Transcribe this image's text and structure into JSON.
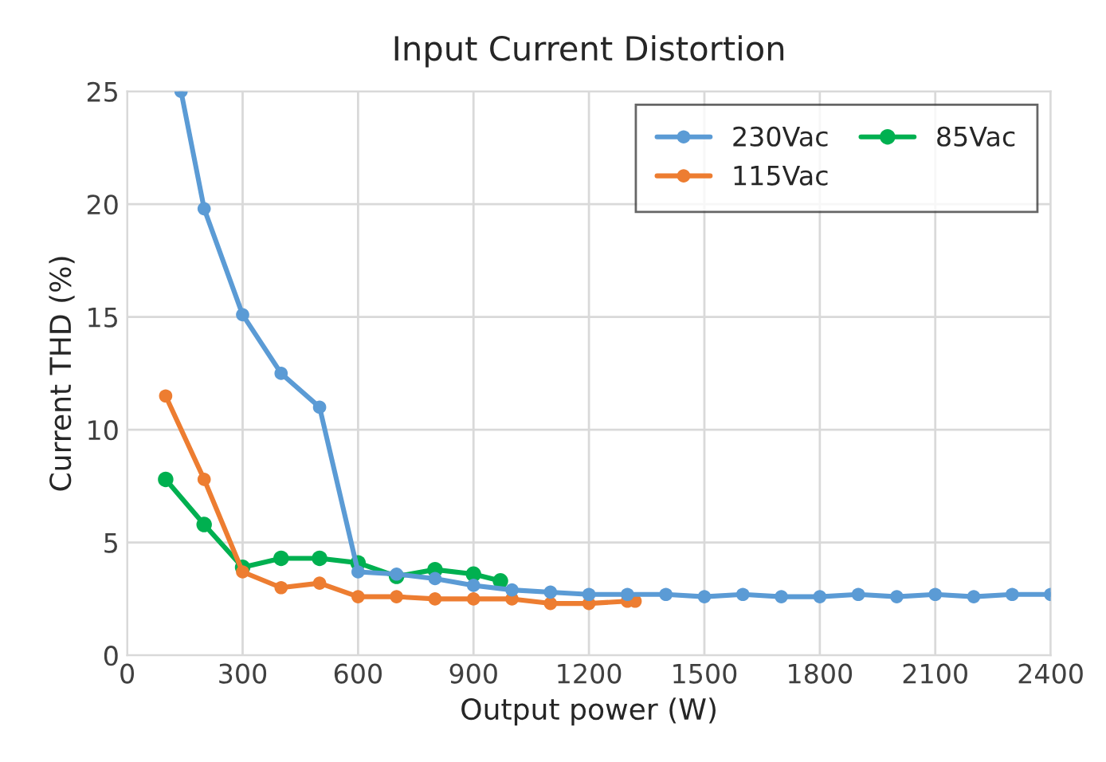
{
  "chart_data": {
    "type": "line",
    "title": "Input Current Distortion",
    "xlabel": "Output power (W)",
    "ylabel": "Current THD (%)",
    "xlim": [
      0,
      2400
    ],
    "xticks": [
      0,
      300,
      600,
      900,
      1200,
      1500,
      1800,
      2100,
      2400
    ],
    "ylim": [
      0,
      25
    ],
    "yticks": [
      0,
      5,
      10,
      15,
      20,
      25
    ],
    "grid": true,
    "legend": "top right",
    "marker": "circle",
    "line_style": "solid",
    "series": [
      {
        "name": "230Vac",
        "color": "#5b9bd5",
        "x": [
          140,
          200,
          300,
          400,
          500,
          600,
          700,
          800,
          900,
          1000,
          1100,
          1200,
          1300,
          1400,
          1500,
          1600,
          1700,
          1800,
          1900,
          2000,
          2100,
          2200,
          2300,
          2400
        ],
        "values": [
          25,
          19.8,
          15.1,
          12.5,
          11.0,
          3.7,
          3.6,
          3.4,
          3.1,
          2.9,
          2.8,
          2.7,
          2.7,
          2.7,
          2.6,
          2.7,
          2.6,
          2.6,
          2.7,
          2.6,
          2.7,
          2.6,
          2.7,
          2.7
        ]
      },
      {
        "name": "115Vac",
        "color": "#ed7d31",
        "x": [
          100,
          200,
          300,
          400,
          500,
          600,
          700,
          800,
          900,
          1000,
          1100,
          1200,
          1300,
          1320
        ],
        "values": [
          11.5,
          7.8,
          3.7,
          3.0,
          3.2,
          2.6,
          2.6,
          2.5,
          2.5,
          2.5,
          2.3,
          2.3,
          2.4,
          2.4
        ]
      },
      {
        "name": "85Vac",
        "color": "#00b050",
        "x": [
          100,
          200,
          300,
          400,
          500,
          600,
          700,
          800,
          900,
          970
        ],
        "values": [
          7.8,
          5.8,
          3.9,
          4.3,
          4.3,
          4.1,
          3.5,
          3.8,
          3.6,
          3.3
        ]
      }
    ]
  }
}
